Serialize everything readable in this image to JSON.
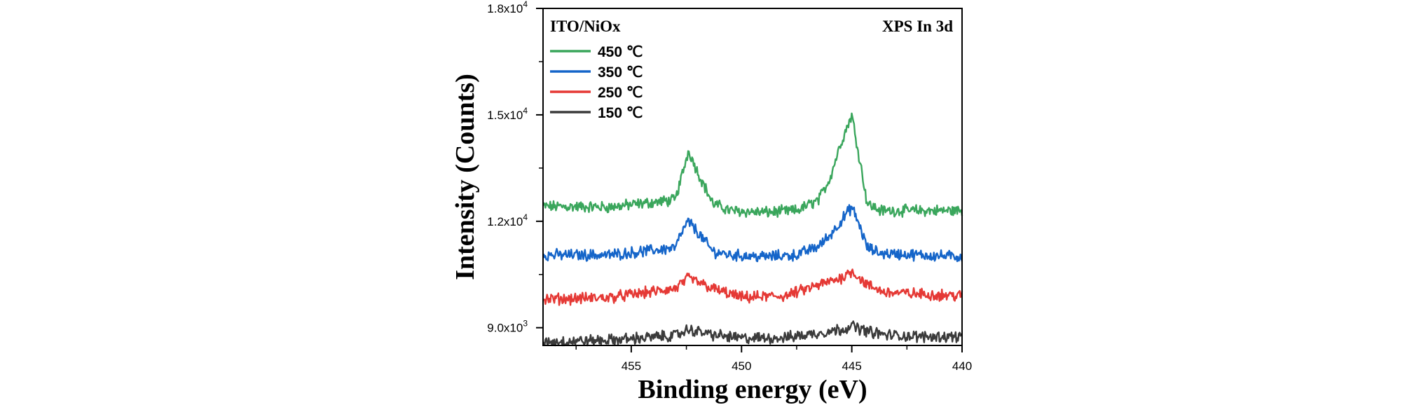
{
  "chart_data": {
    "type": "line",
    "title": "",
    "xlabel": "Binding energy (eV)",
    "ylabel": "Intensity (Counts)",
    "xlim": [
      459,
      440
    ],
    "x_reversed": true,
    "ylim": [
      8500,
      18000
    ],
    "xticks": [
      455,
      450,
      445,
      440
    ],
    "xtick_labels": [
      "455",
      "450",
      "445",
      "440"
    ],
    "yticks": [
      9000,
      12000,
      15000,
      18000
    ],
    "ytick_labels": [
      {
        "mantissa": "9.0x10",
        "exp": "3"
      },
      {
        "mantissa": "1.2x10",
        "exp": "4"
      },
      {
        "mantissa": "1.5x10",
        "exp": "4"
      },
      {
        "mantissa": "1.8x10",
        "exp": "4"
      }
    ],
    "annotations": {
      "sample": "ITO/NiOx",
      "label": "XPS In 3d"
    },
    "legend_position": "top-left",
    "series": [
      {
        "name": "450 ℃",
        "color": "#3aa65c",
        "x": [
          459,
          456,
          453,
          452.7,
          452.4,
          452.0,
          451.3,
          450.5,
          449.0,
          447.5,
          446.5,
          446.0,
          445.5,
          445.0,
          444.6,
          444.3,
          443.7,
          442.0,
          440
        ],
        "y": [
          12420,
          12400,
          12600,
          13300,
          14000,
          13400,
          12500,
          12300,
          12250,
          12300,
          12600,
          13200,
          14200,
          15000,
          13600,
          12500,
          12300,
          12300,
          12300
        ]
      },
      {
        "name": "350 ℃",
        "color": "#1565c9",
        "x": [
          459,
          456,
          453,
          452.7,
          452.4,
          452.0,
          451.3,
          450.5,
          449.0,
          447.5,
          446.5,
          446.0,
          445.5,
          445.0,
          444.6,
          444.3,
          443.7,
          442.0,
          440
        ],
        "y": [
          11050,
          11050,
          11250,
          11700,
          12000,
          11700,
          11150,
          11050,
          11000,
          11050,
          11300,
          11600,
          12000,
          12400,
          11800,
          11250,
          11100,
          11050,
          11000
        ]
      },
      {
        "name": "250 ℃",
        "color": "#e53935",
        "x": [
          459,
          456,
          453,
          452.4,
          451.3,
          450.0,
          448.0,
          446.5,
          445.5,
          445.0,
          444.3,
          443.5,
          442.0,
          440
        ],
        "y": [
          9800,
          9850,
          10100,
          10400,
          10100,
          9850,
          9900,
          10200,
          10400,
          10600,
          10200,
          10000,
          9950,
          9900
        ]
      },
      {
        "name": "150 ℃",
        "color": "#3b3b3b",
        "x": [
          459,
          456,
          453,
          452.4,
          451.3,
          450.0,
          448.0,
          446.5,
          445.5,
          445.0,
          444.3,
          443.5,
          442.0,
          440
        ],
        "y": [
          8600,
          8650,
          8780,
          8950,
          8800,
          8700,
          8720,
          8850,
          8950,
          9050,
          8900,
          8800,
          8750,
          8750
        ]
      }
    ]
  }
}
